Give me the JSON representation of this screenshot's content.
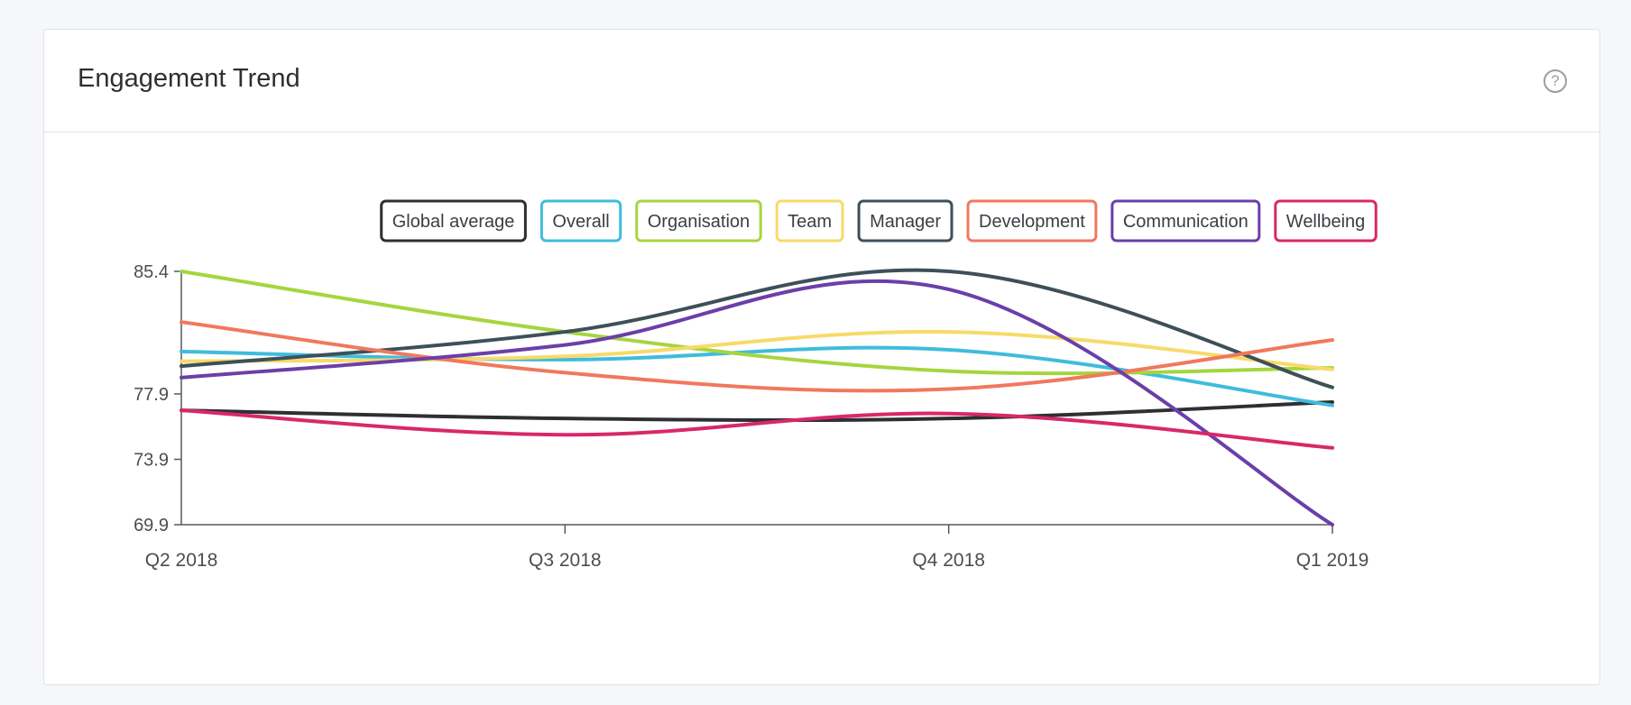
{
  "card": {
    "title": "Engagement Trend",
    "help_glyph": "?"
  },
  "chart_data": {
    "type": "line",
    "title": "Engagement Trend",
    "categories": [
      "Q2 2018",
      "Q3 2018",
      "Q4 2018",
      "Q1 2019"
    ],
    "y_ticks": [
      "85.4",
      "77.9",
      "73.9",
      "69.9"
    ],
    "ylim": [
      69.9,
      85.4
    ],
    "smooth": true,
    "legend_position": "top-center",
    "series": [
      {
        "name": "Global average",
        "color": "#2d2f33",
        "values": [
          76.9,
          76.4,
          76.4,
          77.4
        ]
      },
      {
        "name": "Overall",
        "color": "#3fbcdc",
        "values": [
          80.5,
          80.0,
          80.6,
          77.2
        ]
      },
      {
        "name": "Organisation",
        "color": "#a6d53e",
        "values": [
          85.4,
          81.7,
          79.3,
          79.5
        ]
      },
      {
        "name": "Team",
        "color": "#f7da6a",
        "values": [
          79.9,
          80.2,
          81.7,
          79.4
        ]
      },
      {
        "name": "Manager",
        "color": "#3d5059",
        "values": [
          79.6,
          81.7,
          85.4,
          78.3
        ]
      },
      {
        "name": "Development",
        "color": "#f0785e",
        "values": [
          82.3,
          79.2,
          78.2,
          81.2
        ]
      },
      {
        "name": "Communication",
        "color": "#6b3fa8",
        "values": [
          78.9,
          80.9,
          84.3,
          69.9
        ]
      },
      {
        "name": "Wellbeing",
        "color": "#d8286a",
        "values": [
          76.9,
          75.4,
          76.7,
          74.6
        ]
      }
    ]
  }
}
